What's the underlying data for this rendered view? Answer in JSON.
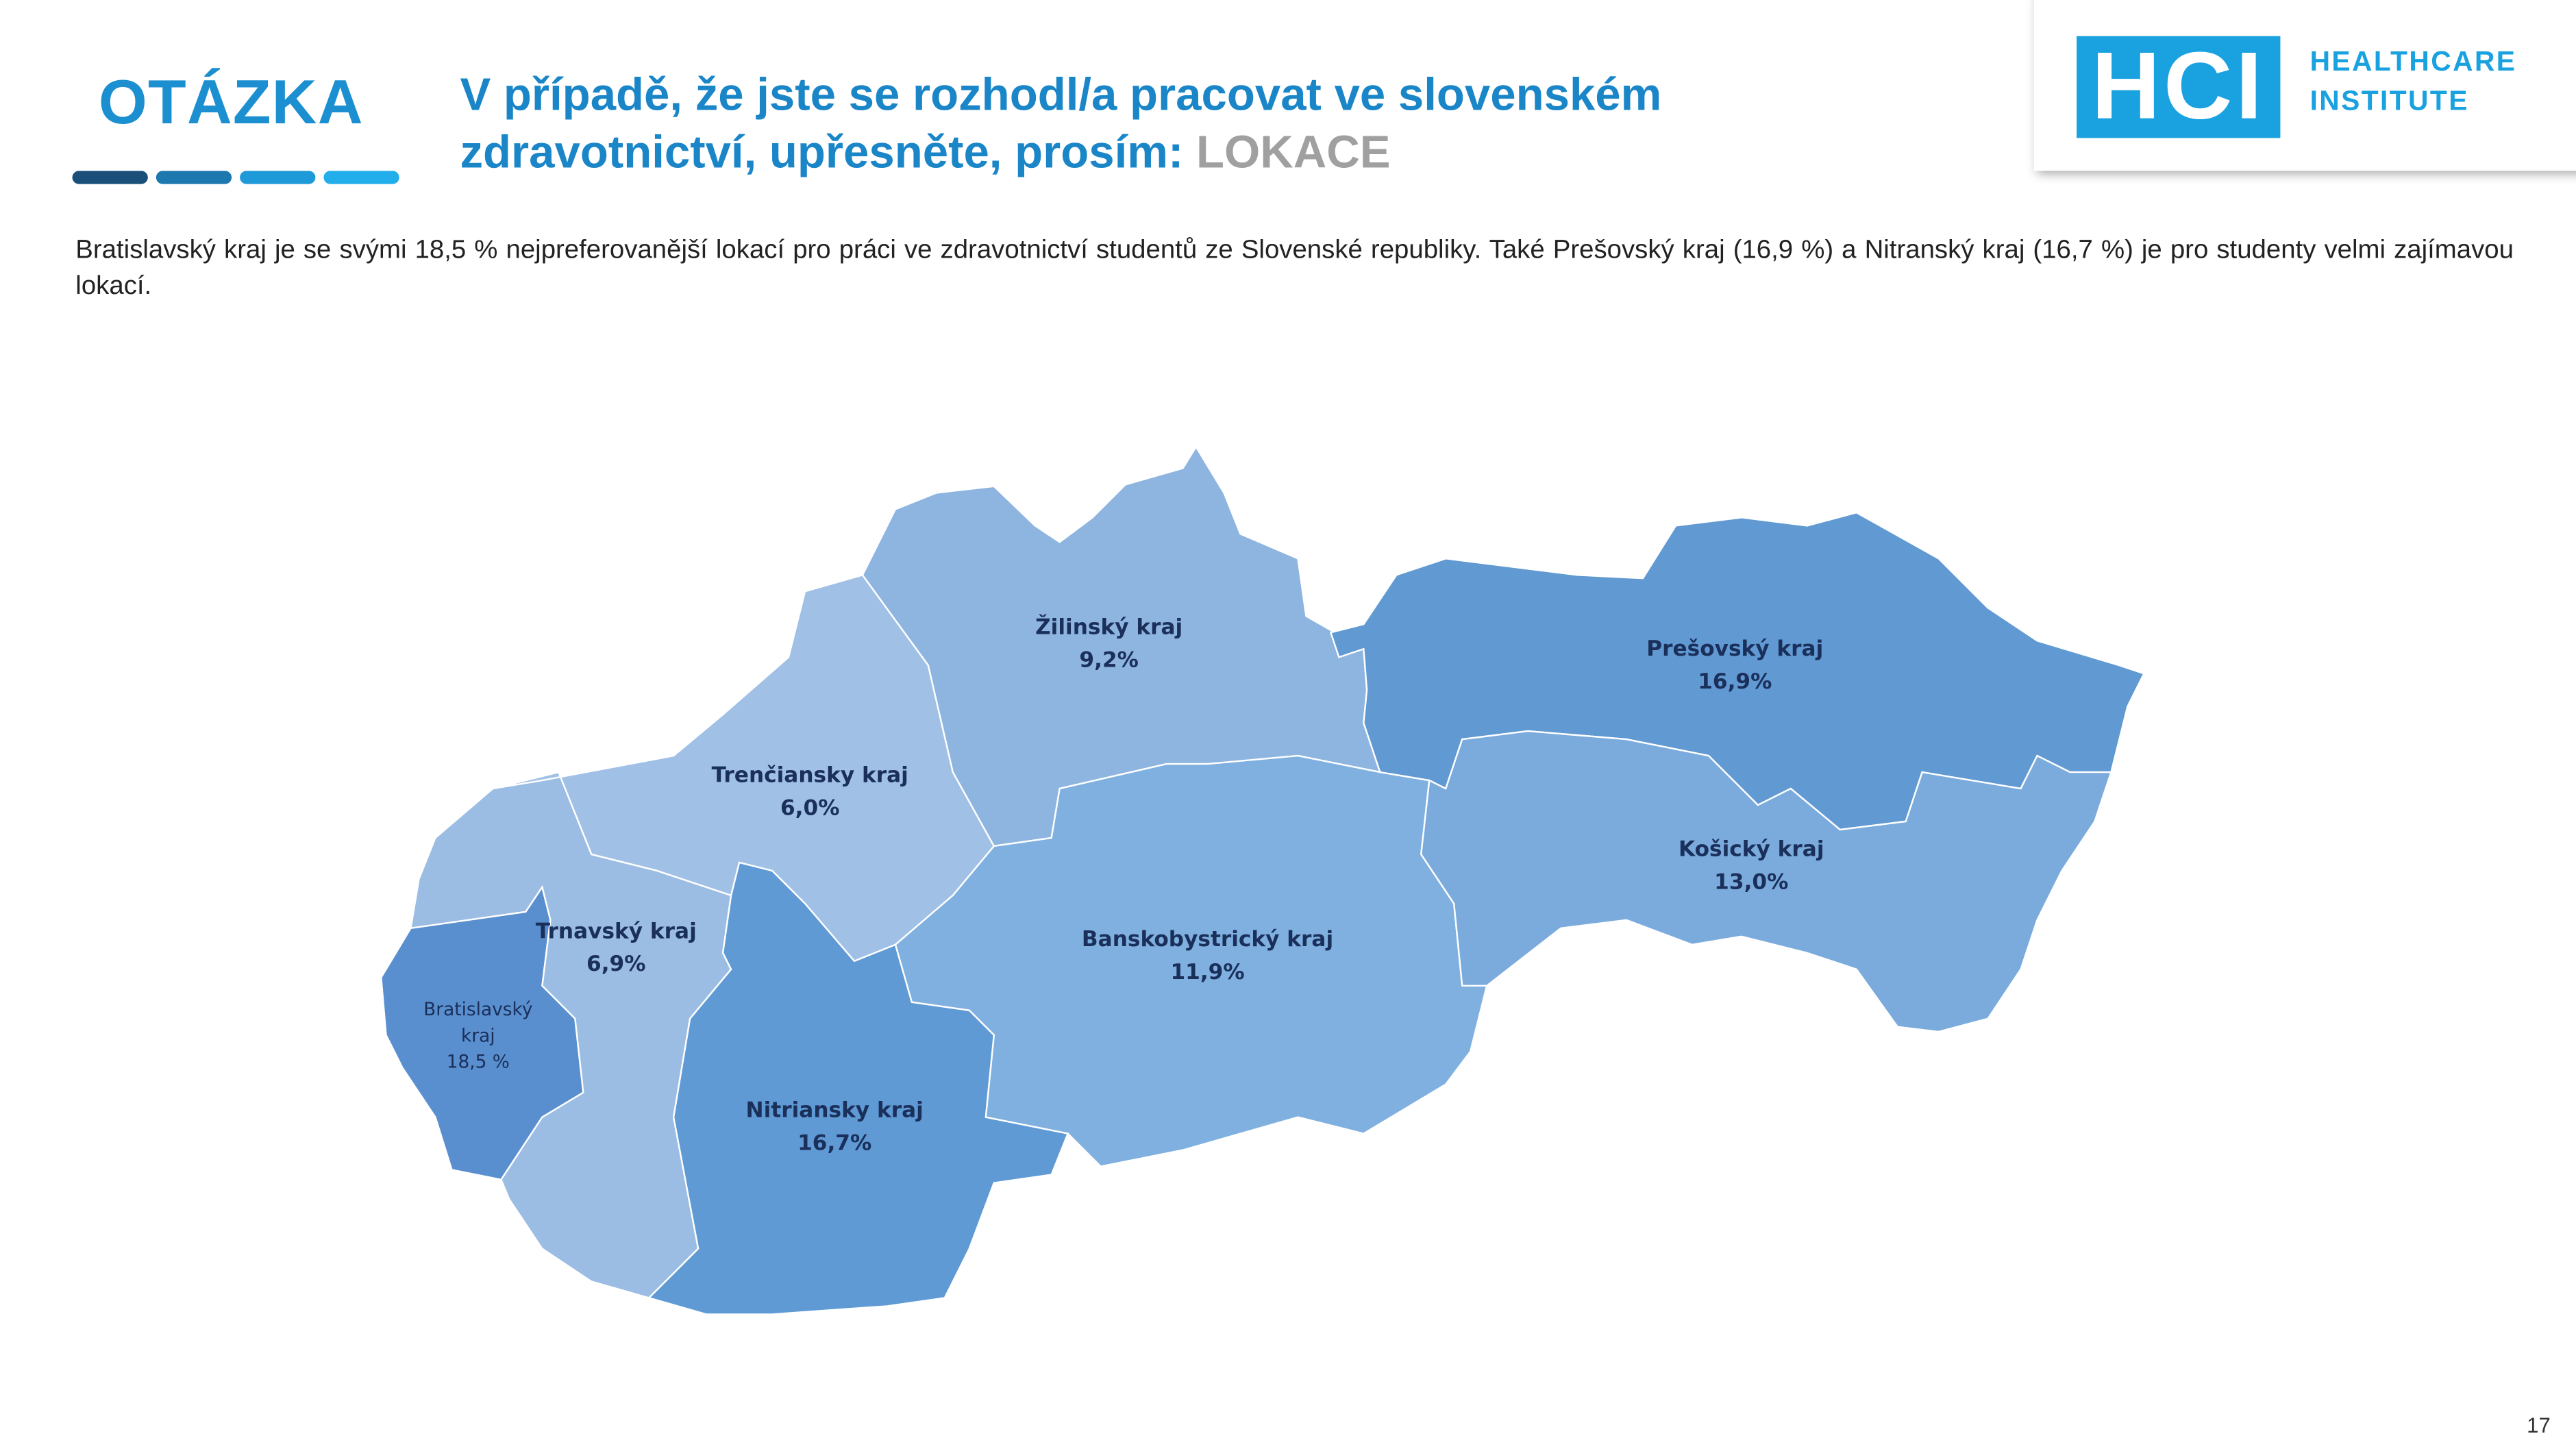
{
  "header": {
    "label": "OTÁZKA",
    "title": "V případě, že jste se rozhodl/a pracovat ve slovenském zdravotnictví, upřesněte, prosím:",
    "title_highlight": "LOKACE"
  },
  "logo": {
    "mark": "HCI",
    "line1": "HEALTHCARE",
    "line2": "INSTITUTE"
  },
  "description": "Bratislavský kraj je se svými 18,5 % nejpreferovanější lokací pro práci ve zdravotnictví studentů ze Slovenské republiky. Také Prešovský kraj (16,9 %) a Nitranský kraj (16,7 %) je pro studenty velmi zajímavou lokací.",
  "map": {
    "regions": [
      {
        "name": "Žilinský kraj",
        "label": "9,2%"
      },
      {
        "name": "Prešovský kraj",
        "label": "16,9%"
      },
      {
        "name": "Trenčiansky kraj",
        "label": "6,0%"
      },
      {
        "name": "Košický kraj",
        "label": "13,0%"
      },
      {
        "name": "Trnavský kraj",
        "label": "6,9%"
      },
      {
        "name": "Banskobystrický kraj",
        "label": "11,9%"
      },
      {
        "name": "Bratislavský kraj",
        "label": "18,5 %"
      },
      {
        "name": "Nitriansky kraj",
        "label": "16,7%"
      }
    ]
  },
  "page_number": "17"
}
